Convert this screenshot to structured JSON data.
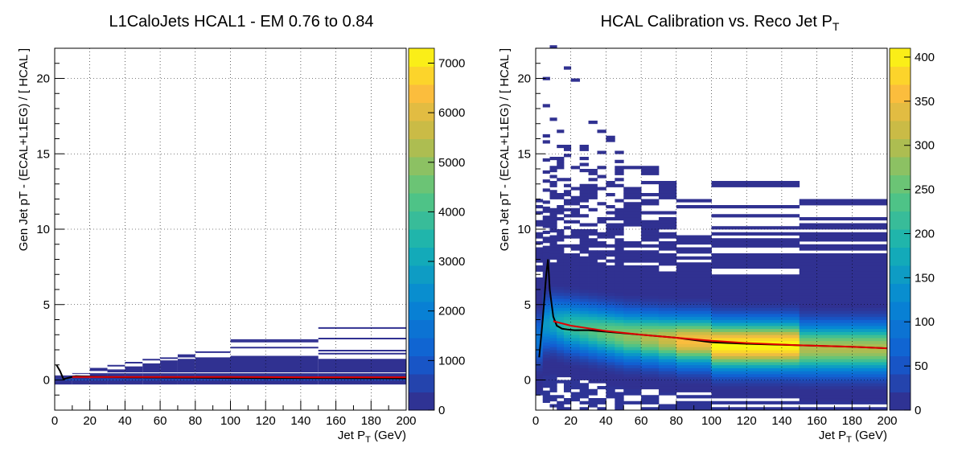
{
  "chart_data": [
    {
      "type": "heatmap",
      "title": "L1CaloJets HCAL1 - EM 0.76 to 0.84",
      "xlabel": "Jet P_T (GeV)",
      "ylabel": "Gen Jet pT - (ECAL+L1EG) / [ HCAL ]",
      "xlim": [
        0,
        200
      ],
      "ylim": [
        -2,
        22
      ],
      "xticks": [
        "0",
        "20",
        "40",
        "60",
        "80",
        "100",
        "120",
        "140",
        "160",
        "180",
        "200"
      ],
      "yticks": [
        "0",
        "5",
        "10",
        "15",
        "20"
      ],
      "zlim": [
        0,
        7300
      ],
      "zticks": [
        "0",
        "1000",
        "2000",
        "3000",
        "4000",
        "5000",
        "6000",
        "7000"
      ],
      "grid": true,
      "x_bins": [
        [
          0,
          10
        ],
        [
          10,
          20
        ],
        [
          20,
          30
        ],
        [
          30,
          40
        ],
        [
          40,
          50
        ],
        [
          50,
          60
        ],
        [
          60,
          70
        ],
        [
          70,
          80
        ],
        [
          80,
          100
        ],
        [
          100,
          150
        ],
        [
          150,
          200
        ]
      ],
      "upper_extent": [
        0.3,
        0.5,
        0.8,
        1.0,
        1.2,
        1.4,
        1.5,
        1.7,
        1.9,
        2.7,
        3.5
      ],
      "dense_top": [
        0.2,
        0.3,
        0.5,
        0.7,
        0.9,
        1.1,
        1.3,
        1.4,
        1.5,
        1.6,
        1.4
      ],
      "black_profile": {
        "x": [
          1,
          3,
          5,
          8,
          12,
          20,
          40,
          80,
          120,
          160,
          200
        ],
        "y": [
          1.0,
          0.6,
          0.05,
          0.15,
          0.25,
          0.22,
          0.18,
          0.15,
          0.12,
          0.12,
          0.1
        ]
      },
      "red_fit": {
        "x": [
          10,
          50,
          100,
          150,
          200
        ],
        "y": [
          0.2,
          0.2,
          0.2,
          0.18,
          0.18
        ]
      }
    },
    {
      "type": "heatmap",
      "title": "HCAL Calibration vs. Reco Jet P",
      "title_sub": "T",
      "xlabel": "Jet P_T (GeV)",
      "ylabel": "Gen Jet pT - (ECAL+L1EG) / [ HCAL ]",
      "xlim": [
        0,
        200
      ],
      "ylim": [
        -2,
        22
      ],
      "xticks": [
        "0",
        "20",
        "40",
        "60",
        "80",
        "100",
        "120",
        "140",
        "160",
        "180",
        "200"
      ],
      "yticks": [
        "0",
        "5",
        "10",
        "15",
        "20"
      ],
      "zlim": [
        0,
        410
      ],
      "zticks": [
        "0",
        "50",
        "100",
        "150",
        "200",
        "250",
        "300",
        "350",
        "400"
      ],
      "grid": true,
      "x_bins": [
        [
          0,
          4
        ],
        [
          4,
          8
        ],
        [
          8,
          12
        ],
        [
          12,
          16
        ],
        [
          16,
          20
        ],
        [
          20,
          25
        ],
        [
          25,
          30
        ],
        [
          30,
          35
        ],
        [
          35,
          40
        ],
        [
          40,
          45
        ],
        [
          45,
          50
        ],
        [
          50,
          60
        ],
        [
          60,
          70
        ],
        [
          70,
          80
        ],
        [
          80,
          100
        ],
        [
          100,
          150
        ],
        [
          150,
          200
        ]
      ],
      "bin_top": [
        12,
        22,
        22,
        22,
        21,
        20,
        19,
        18,
        17,
        16,
        15,
        14,
        14,
        13,
        12,
        13,
        12
      ],
      "bin_bottom": [
        -1.0,
        -1.5,
        -2,
        -2,
        -2,
        -2,
        -2,
        -2,
        -2,
        -2,
        -2,
        -2,
        -2,
        -2,
        -2,
        -2,
        -2
      ],
      "bin_peak": [
        2.6,
        3.6,
        3.7,
        3.6,
        3.5,
        3.4,
        3.3,
        3.2,
        3.1,
        3.0,
        2.9,
        2.8,
        2.7,
        2.6,
        2.5,
        2.2,
        2.0
      ],
      "bin_max": [
        100,
        150,
        170,
        190,
        210,
        220,
        230,
        240,
        250,
        260,
        270,
        280,
        300,
        320,
        360,
        410,
        300
      ],
      "black_profile": {
        "x": [
          2,
          4,
          6,
          7,
          8,
          10,
          12,
          15,
          18,
          22,
          30,
          40,
          60,
          80,
          100,
          120,
          150,
          180,
          200
        ],
        "y": [
          1.5,
          4,
          7,
          8,
          6,
          4.2,
          3.6,
          3.4,
          3.35,
          3.3,
          3.3,
          3.2,
          3.0,
          2.8,
          2.5,
          2.4,
          2.3,
          2.2,
          2.1
        ]
      },
      "red_fit": {
        "x": [
          10,
          20,
          40,
          60,
          80,
          100,
          120,
          150,
          180,
          200
        ],
        "y": [
          3.9,
          3.6,
          3.25,
          3.0,
          2.8,
          2.6,
          2.45,
          2.3,
          2.2,
          2.1
        ]
      }
    }
  ]
}
